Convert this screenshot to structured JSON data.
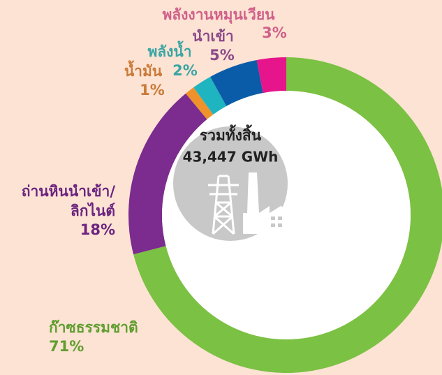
{
  "chart_data": {
    "type": "donut",
    "title": "รวมทั้งสิ้น",
    "subtitle": "43,447 GWh",
    "categories": [
      "ก๊าซธรรมชาติ",
      "ถ่านหินนำเข้า/ลิกไนต์",
      "น้ำมัน",
      "พลังน้ำ",
      "นำเข้า",
      "พลังงานหมุนเวียน"
    ],
    "values": [
      71,
      18,
      1,
      2,
      5,
      3
    ],
    "value_labels": [
      "71%",
      "18%",
      "1%",
      "2%",
      "5%",
      "3%"
    ],
    "colors": [
      "#7bc143",
      "#7b2c8e",
      "#f0922b",
      "#1fb5c0",
      "#0a5ca8",
      "#e6158b"
    ],
    "label_colors": [
      "#5f9e2f",
      "#6b2480",
      "#c97a3a",
      "#3aa5a5",
      "#8a4a8a",
      "#d0608a"
    ]
  }
}
